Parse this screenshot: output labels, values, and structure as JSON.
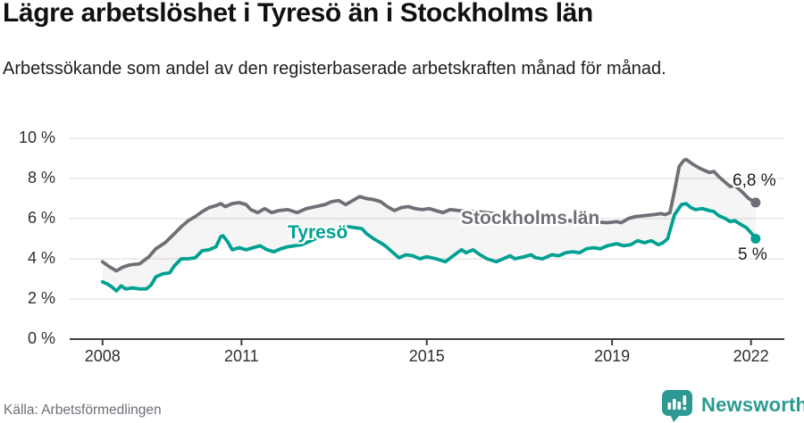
{
  "title": "Lägre arbetslöshet i Tyresö än i Stockholms län",
  "subtitle": "Arbetssökande som andel av den registerbaserade arbetskraften månad för månad.",
  "source": "Källa: Arbetsförmedlingen",
  "logo": {
    "text": "Newsworthy",
    "icon": "newsworthy-bubble-chart-icon"
  },
  "colors": {
    "tyreso": "#00a192",
    "stockholm": "#726d76",
    "grid": "#e2e2e1",
    "axis": "#3f3f3f",
    "band_fill": "rgba(128,128,128,0.08)",
    "brand_teal": "#2c9a92",
    "value_label_text": "#1a1a1a",
    "tick_text": "#2e2e2e"
  },
  "chart_data": {
    "type": "line",
    "title": "Lägre arbetslöshet i Tyresö än i Stockholms län",
    "xlabel": "",
    "ylabel": "",
    "grid": true,
    "legend_position": "inline-labels-on-lines",
    "fill_between_series": true,
    "x_axis": {
      "unit": "year (monthly data)",
      "range": [
        2007.29,
        2022.72
      ],
      "ticks": [
        2008,
        2011,
        2015,
        2019,
        2022
      ],
      "tick_labels": [
        "2008",
        "2011",
        "2015",
        "2019",
        "2022"
      ]
    },
    "y_axis": {
      "unit": "percent",
      "range": [
        0,
        10
      ],
      "ticks": [
        0,
        2,
        4,
        6,
        8,
        10
      ],
      "tick_labels": [
        "0 %",
        "2 %",
        "4 %",
        "6 %",
        "8 %",
        "10 %"
      ]
    },
    "series": [
      {
        "name": "Stockholms län",
        "color": "#726d76",
        "end_label": "6,8 %",
        "end_value": 6.8,
        "points": [
          [
            2008.0,
            3.85
          ],
          [
            2008.15,
            3.6
          ],
          [
            2008.3,
            3.4
          ],
          [
            2008.45,
            3.6
          ],
          [
            2008.6,
            3.7
          ],
          [
            2008.8,
            3.75
          ],
          [
            2009.0,
            4.1
          ],
          [
            2009.15,
            4.5
          ],
          [
            2009.35,
            4.8
          ],
          [
            2009.55,
            5.25
          ],
          [
            2009.7,
            5.6
          ],
          [
            2009.85,
            5.9
          ],
          [
            2010.0,
            6.1
          ],
          [
            2010.15,
            6.35
          ],
          [
            2010.3,
            6.55
          ],
          [
            2010.45,
            6.65
          ],
          [
            2010.55,
            6.75
          ],
          [
            2010.65,
            6.6
          ],
          [
            2010.8,
            6.75
          ],
          [
            2010.95,
            6.8
          ],
          [
            2011.1,
            6.7
          ],
          [
            2011.2,
            6.45
          ],
          [
            2011.35,
            6.3
          ],
          [
            2011.5,
            6.5
          ],
          [
            2011.65,
            6.3
          ],
          [
            2011.8,
            6.4
          ],
          [
            2012.0,
            6.45
          ],
          [
            2012.2,
            6.3
          ],
          [
            2012.4,
            6.5
          ],
          [
            2012.6,
            6.6
          ],
          [
            2012.8,
            6.7
          ],
          [
            2012.95,
            6.85
          ],
          [
            2013.1,
            6.9
          ],
          [
            2013.25,
            6.7
          ],
          [
            2013.4,
            6.9
          ],
          [
            2013.55,
            7.1
          ],
          [
            2013.7,
            7.0
          ],
          [
            2013.85,
            6.95
          ],
          [
            2014.0,
            6.85
          ],
          [
            2014.15,
            6.6
          ],
          [
            2014.3,
            6.4
          ],
          [
            2014.45,
            6.55
          ],
          [
            2014.6,
            6.6
          ],
          [
            2014.75,
            6.5
          ],
          [
            2014.9,
            6.45
          ],
          [
            2015.05,
            6.5
          ],
          [
            2015.2,
            6.4
          ],
          [
            2015.35,
            6.3
          ],
          [
            2015.5,
            6.45
          ],
          [
            2015.7,
            6.4
          ],
          [
            2016.1,
            6.35
          ],
          [
            2016.5,
            6.25
          ],
          [
            2017.0,
            6.15
          ],
          [
            2017.5,
            6.0
          ],
          [
            2018.0,
            5.9
          ],
          [
            2018.5,
            5.85
          ],
          [
            2018.9,
            5.8
          ],
          [
            2019.1,
            5.85
          ],
          [
            2019.2,
            5.8
          ],
          [
            2019.35,
            6.0
          ],
          [
            2019.5,
            6.1
          ],
          [
            2019.7,
            6.15
          ],
          [
            2019.9,
            6.2
          ],
          [
            2020.05,
            6.25
          ],
          [
            2020.15,
            6.2
          ],
          [
            2020.25,
            6.3
          ],
          [
            2020.35,
            7.4
          ],
          [
            2020.45,
            8.6
          ],
          [
            2020.55,
            8.9
          ],
          [
            2020.6,
            8.95
          ],
          [
            2020.75,
            8.7
          ],
          [
            2020.9,
            8.5
          ],
          [
            2021.0,
            8.4
          ],
          [
            2021.1,
            8.3
          ],
          [
            2021.2,
            8.35
          ],
          [
            2021.3,
            8.1
          ],
          [
            2021.45,
            7.8
          ],
          [
            2021.55,
            7.6
          ],
          [
            2021.65,
            7.65
          ],
          [
            2021.8,
            7.35
          ],
          [
            2021.95,
            7.0
          ],
          [
            2022.1,
            6.8
          ]
        ]
      },
      {
        "name": "Tyresö",
        "color": "#00a192",
        "end_label": "5 %",
        "end_value": 5.0,
        "points": [
          [
            2008.0,
            2.85
          ],
          [
            2008.1,
            2.75
          ],
          [
            2008.2,
            2.6
          ],
          [
            2008.3,
            2.4
          ],
          [
            2008.4,
            2.65
          ],
          [
            2008.5,
            2.5
          ],
          [
            2008.65,
            2.55
          ],
          [
            2008.8,
            2.5
          ],
          [
            2008.95,
            2.5
          ],
          [
            2009.05,
            2.7
          ],
          [
            2009.15,
            3.1
          ],
          [
            2009.3,
            3.25
          ],
          [
            2009.45,
            3.3
          ],
          [
            2009.55,
            3.65
          ],
          [
            2009.7,
            4.0
          ],
          [
            2009.85,
            4.0
          ],
          [
            2010.0,
            4.05
          ],
          [
            2010.15,
            4.4
          ],
          [
            2010.3,
            4.45
          ],
          [
            2010.45,
            4.6
          ],
          [
            2010.55,
            5.1
          ],
          [
            2010.6,
            5.15
          ],
          [
            2010.7,
            4.85
          ],
          [
            2010.8,
            4.45
          ],
          [
            2010.95,
            4.55
          ],
          [
            2011.1,
            4.45
          ],
          [
            2011.25,
            4.55
          ],
          [
            2011.4,
            4.65
          ],
          [
            2011.55,
            4.45
          ],
          [
            2011.7,
            4.35
          ],
          [
            2011.85,
            4.5
          ],
          [
            2012.0,
            4.6
          ],
          [
            2012.3,
            4.7
          ],
          [
            2012.5,
            4.9
          ],
          [
            2012.7,
            5.1
          ],
          [
            2012.9,
            5.3
          ],
          [
            2013.1,
            5.5
          ],
          [
            2013.3,
            5.6
          ],
          [
            2013.45,
            5.55
          ],
          [
            2013.6,
            5.5
          ],
          [
            2013.7,
            5.25
          ],
          [
            2013.85,
            5.0
          ],
          [
            2014.0,
            4.8
          ],
          [
            2014.1,
            4.65
          ],
          [
            2014.25,
            4.35
          ],
          [
            2014.4,
            4.05
          ],
          [
            2014.55,
            4.2
          ],
          [
            2014.7,
            4.15
          ],
          [
            2014.85,
            4.0
          ],
          [
            2015.0,
            4.1
          ],
          [
            2015.2,
            4.0
          ],
          [
            2015.4,
            3.85
          ],
          [
            2015.6,
            4.2
          ],
          [
            2015.75,
            4.45
          ],
          [
            2015.85,
            4.3
          ],
          [
            2016.0,
            4.45
          ],
          [
            2016.15,
            4.2
          ],
          [
            2016.3,
            4.0
          ],
          [
            2016.5,
            3.85
          ],
          [
            2016.65,
            4.0
          ],
          [
            2016.8,
            4.15
          ],
          [
            2016.9,
            4.0
          ],
          [
            2017.1,
            4.1
          ],
          [
            2017.25,
            4.2
          ],
          [
            2017.35,
            4.05
          ],
          [
            2017.5,
            4.0
          ],
          [
            2017.7,
            4.2
          ],
          [
            2017.85,
            4.15
          ],
          [
            2018.0,
            4.3
          ],
          [
            2018.15,
            4.35
          ],
          [
            2018.3,
            4.3
          ],
          [
            2018.45,
            4.5
          ],
          [
            2018.6,
            4.55
          ],
          [
            2018.75,
            4.5
          ],
          [
            2018.9,
            4.65
          ],
          [
            2019.1,
            4.75
          ],
          [
            2019.25,
            4.65
          ],
          [
            2019.4,
            4.7
          ],
          [
            2019.55,
            4.9
          ],
          [
            2019.7,
            4.8
          ],
          [
            2019.85,
            4.9
          ],
          [
            2020.0,
            4.7
          ],
          [
            2020.1,
            4.8
          ],
          [
            2020.2,
            5.0
          ],
          [
            2020.35,
            6.2
          ],
          [
            2020.5,
            6.7
          ],
          [
            2020.6,
            6.75
          ],
          [
            2020.7,
            6.55
          ],
          [
            2020.8,
            6.45
          ],
          [
            2020.95,
            6.5
          ],
          [
            2021.1,
            6.4
          ],
          [
            2021.2,
            6.35
          ],
          [
            2021.3,
            6.15
          ],
          [
            2021.45,
            6.0
          ],
          [
            2021.55,
            5.85
          ],
          [
            2021.65,
            5.9
          ],
          [
            2021.75,
            5.75
          ],
          [
            2021.9,
            5.55
          ],
          [
            2022.0,
            5.3
          ],
          [
            2022.1,
            5.0
          ]
        ]
      }
    ]
  }
}
